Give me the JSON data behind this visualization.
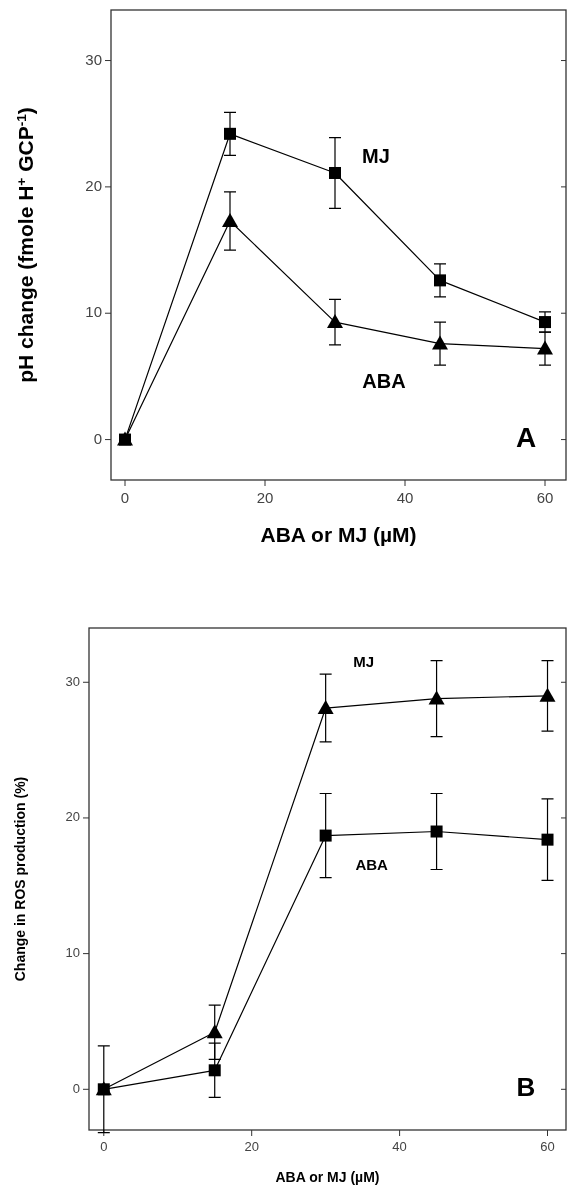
{
  "chart_data": [
    {
      "type": "line",
      "xlabel": "ABA or MJ (µM)",
      "ylabel": "pH change (fmole H$^{+}$ GCP$^{-1}$)",
      "x": [
        0,
        15,
        30,
        45,
        60
      ],
      "xlim": [
        -2,
        63
      ],
      "xticks": [
        0,
        20,
        40,
        60
      ],
      "ylim": [
        -3.2,
        34
      ],
      "yticks": [
        0,
        10,
        20,
        30
      ],
      "grid": false,
      "annotations": [
        "A"
      ],
      "series": [
        {
          "name": "MJ",
          "color": "#000000",
          "marker": "square",
          "values": [
            0,
            24.2,
            21.1,
            12.6,
            9.3
          ],
          "errors": [
            null,
            1.7,
            2.8,
            1.3,
            0.8
          ]
        },
        {
          "name": "ABA",
          "color": "#000000",
          "marker": "triangle",
          "values": [
            0,
            17.3,
            9.3,
            7.6,
            7.2
          ],
          "errors": [
            null,
            2.3,
            1.8,
            1.7,
            1.3
          ]
        }
      ]
    },
    {
      "type": "line",
      "xlabel": "ABA or MJ (µM)",
      "ylabel": "Change in ROS production (%)",
      "x": [
        0,
        15,
        30,
        45,
        60
      ],
      "xlim": [
        -2,
        62.5
      ],
      "xticks": [
        0,
        20,
        40,
        60
      ],
      "ylim": [
        -3,
        34
      ],
      "yticks": [
        0,
        10,
        20,
        30
      ],
      "grid": false,
      "annotations": [
        "B"
      ],
      "series": [
        {
          "name": "ABA",
          "color": "#000000",
          "marker": "square",
          "values": [
            0,
            1.4,
            18.7,
            19.0,
            18.4
          ],
          "errors": [
            3.2,
            2,
            3.1,
            2.8,
            3
          ]
        },
        {
          "name": "MJ",
          "color": "#000000",
          "marker": "triangle",
          "values": [
            0,
            4.2,
            28.1,
            28.8,
            29.0
          ],
          "errors": [
            null,
            2,
            2.5,
            2.8,
            2.6
          ]
        }
      ]
    }
  ]
}
